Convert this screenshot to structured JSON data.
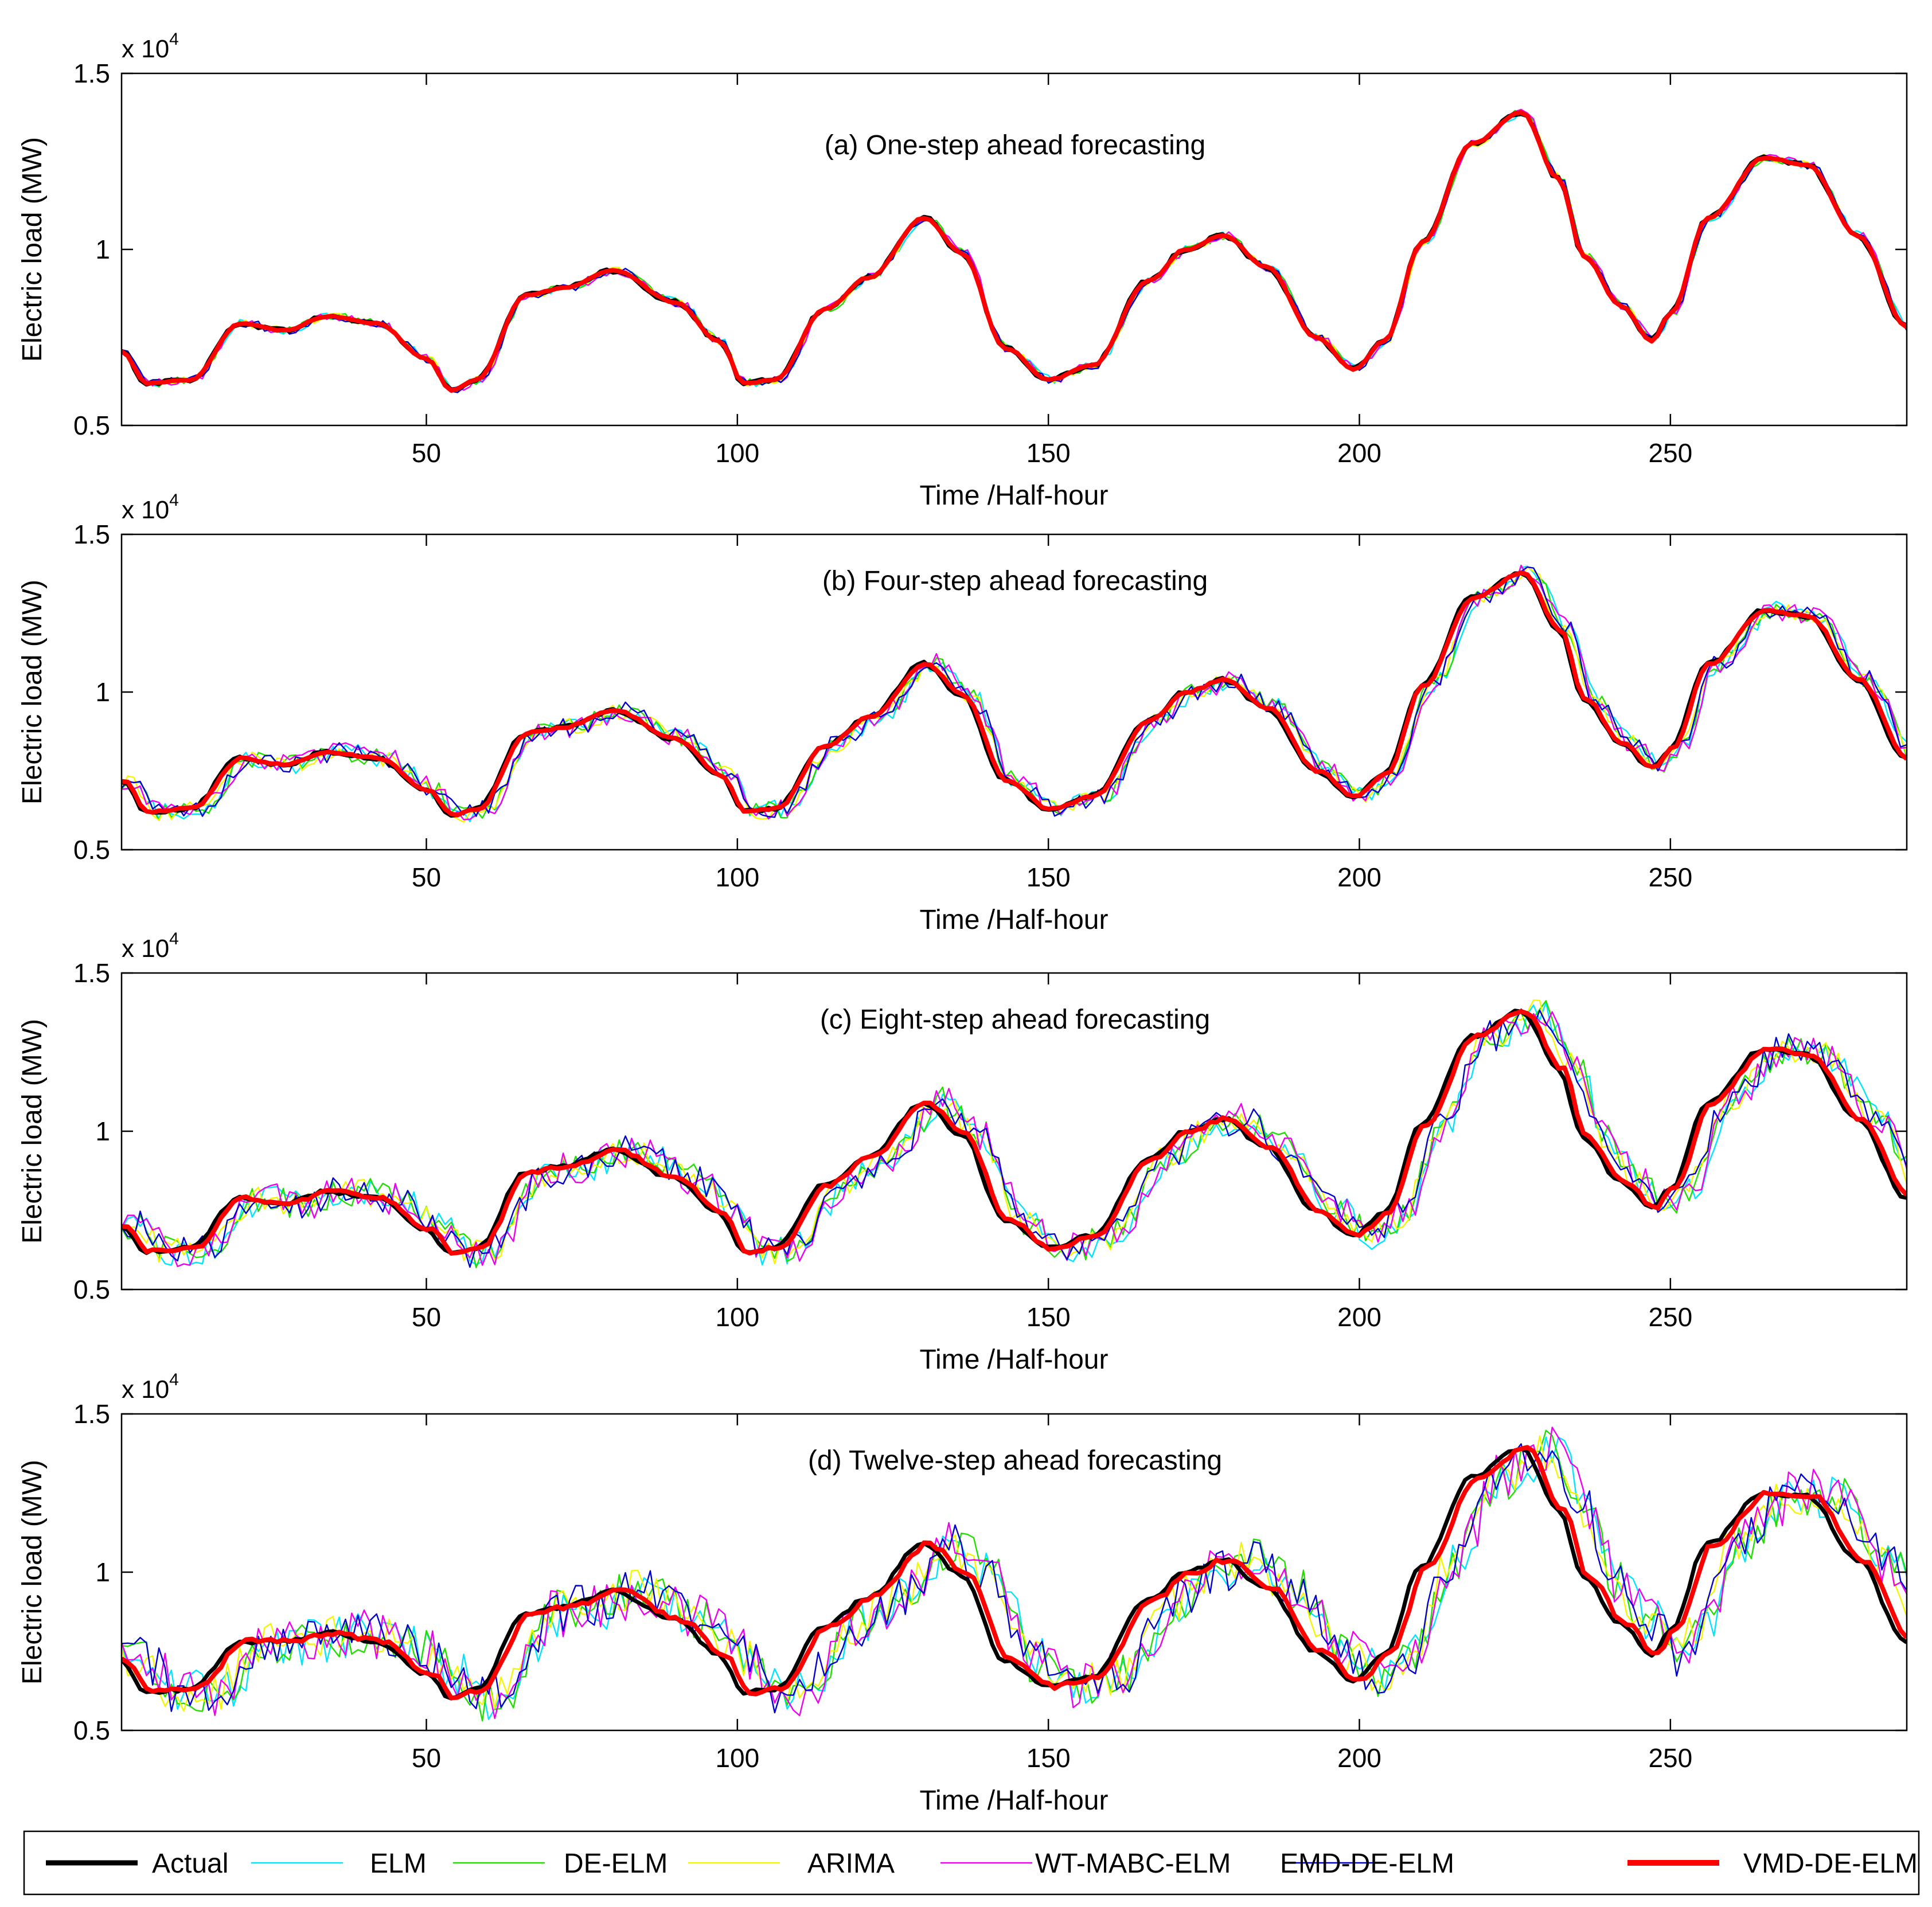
{
  "figure": {
    "x_label": "Time /Half-hour",
    "y_label": "Electric load (MW)",
    "exponent_base": "x 10",
    "exponent_power": "4"
  },
  "legend": [
    {
      "name": "Actual",
      "color": "#000000"
    },
    {
      "name": "ELM",
      "color": "#00e5ff"
    },
    {
      "name": "DE-ELM",
      "color": "#22dd00"
    },
    {
      "name": "ARIMA",
      "color": "#f5f500"
    },
    {
      "name": "WT-MABC-ELM",
      "color": "#ee00ee"
    },
    {
      "name": "EMD-DE-ELM",
      "color": "#0000cc"
    },
    {
      "name": "VMD-DE-ELM",
      "color": "#ff0000"
    }
  ],
  "chart_data": [
    {
      "type": "line",
      "title": "(a) One-step ahead forecasting",
      "xlabel": "Time /Half-hour",
      "ylabel": "Electric load (MW)",
      "xlim": [
        1,
        288
      ],
      "ylim": [
        0.5,
        1.5
      ],
      "y_scale": "x 10^4",
      "xticks": [
        50,
        100,
        150,
        200,
        250
      ],
      "yticks": [
        0.5,
        1,
        1.5
      ],
      "ytick_labels": [
        "0.5",
        "1",
        "1.5"
      ],
      "noise_amplitude": 0.012,
      "series_source": "Actual half-hourly load (x 10^4 MW) with each model's forecast tracking it",
      "actual_keypoints": [
        [
          1,
          0.71
        ],
        [
          5,
          0.62
        ],
        [
          12,
          0.63
        ],
        [
          20,
          0.79
        ],
        [
          27,
          0.77
        ],
        [
          34,
          0.81
        ],
        [
          42,
          0.79
        ],
        [
          50,
          0.69
        ],
        [
          54,
          0.6
        ],
        [
          58,
          0.63
        ],
        [
          66,
          0.87
        ],
        [
          72,
          0.89
        ],
        [
          80,
          0.94
        ],
        [
          90,
          0.85
        ],
        [
          97,
          0.74
        ],
        [
          101,
          0.62
        ],
        [
          106,
          0.63
        ],
        [
          114,
          0.83
        ],
        [
          121,
          0.92
        ],
        [
          130,
          1.09
        ],
        [
          136,
          0.99
        ],
        [
          143,
          0.72
        ],
        [
          150,
          0.63
        ],
        [
          157,
          0.67
        ],
        [
          166,
          0.91
        ],
        [
          172,
          1.0
        ],
        [
          178,
          1.04
        ],
        [
          185,
          0.95
        ],
        [
          193,
          0.75
        ],
        [
          199,
          0.66
        ],
        [
          204,
          0.74
        ],
        [
          210,
          1.02
        ],
        [
          218,
          1.3
        ],
        [
          226,
          1.39
        ],
        [
          232,
          1.2
        ],
        [
          236,
          0.98
        ],
        [
          242,
          0.84
        ],
        [
          247,
          0.74
        ],
        [
          250,
          0.82
        ],
        [
          256,
          1.09
        ],
        [
          265,
          1.26
        ],
        [
          272,
          1.24
        ],
        [
          280,
          1.04
        ],
        [
          288,
          0.78
        ]
      ]
    },
    {
      "type": "line",
      "title": "(b) Four-step ahead forecasting",
      "xlabel": "Time /Half-hour",
      "ylabel": "Electric load (MW)",
      "xlim": [
        1,
        288
      ],
      "ylim": [
        0.5,
        1.5
      ],
      "y_scale": "x 10^4",
      "xticks": [
        50,
        100,
        150,
        200,
        250
      ],
      "yticks": [
        0.5,
        1,
        1.5
      ],
      "ytick_labels": [
        "0.5",
        "1",
        "1.5"
      ],
      "noise_amplitude": 0.03,
      "series_source": "Actual half-hourly load (x 10^4 MW) with each model's forecast tracking it",
      "actual_keypoints": [
        [
          1,
          0.72
        ],
        [
          5,
          0.62
        ],
        [
          12,
          0.63
        ],
        [
          20,
          0.79
        ],
        [
          27,
          0.77
        ],
        [
          34,
          0.81
        ],
        [
          42,
          0.79
        ],
        [
          50,
          0.69
        ],
        [
          54,
          0.61
        ],
        [
          58,
          0.63
        ],
        [
          66,
          0.87
        ],
        [
          72,
          0.89
        ],
        [
          80,
          0.94
        ],
        [
          90,
          0.85
        ],
        [
          97,
          0.74
        ],
        [
          101,
          0.62
        ],
        [
          106,
          0.63
        ],
        [
          114,
          0.83
        ],
        [
          121,
          0.92
        ],
        [
          130,
          1.09
        ],
        [
          136,
          0.99
        ],
        [
          143,
          0.72
        ],
        [
          150,
          0.63
        ],
        [
          157,
          0.67
        ],
        [
          166,
          0.91
        ],
        [
          172,
          1.0
        ],
        [
          178,
          1.04
        ],
        [
          185,
          0.95
        ],
        [
          193,
          0.75
        ],
        [
          199,
          0.67
        ],
        [
          204,
          0.74
        ],
        [
          210,
          1.02
        ],
        [
          218,
          1.3
        ],
        [
          226,
          1.38
        ],
        [
          232,
          1.2
        ],
        [
          236,
          0.98
        ],
        [
          242,
          0.84
        ],
        [
          247,
          0.76
        ],
        [
          250,
          0.82
        ],
        [
          256,
          1.09
        ],
        [
          265,
          1.26
        ],
        [
          272,
          1.24
        ],
        [
          280,
          1.04
        ],
        [
          288,
          0.79
        ]
      ]
    },
    {
      "type": "line",
      "title": "(c) Eight-step ahead forecasting",
      "xlabel": "Time /Half-hour",
      "ylabel": "Electric load (MW)",
      "xlim": [
        1,
        288
      ],
      "ylim": [
        0.5,
        1.5
      ],
      "y_scale": "x 10^4",
      "xticks": [
        50,
        100,
        150,
        200,
        250
      ],
      "yticks": [
        0.5,
        1,
        1.5
      ],
      "ytick_labels": [
        "0.5",
        "1",
        "1.5"
      ],
      "noise_amplitude": 0.05,
      "series_source": "Actual half-hourly load (x 10^4 MW) with each model's forecast tracking it",
      "actual_keypoints": [
        [
          1,
          0.7
        ],
        [
          5,
          0.62
        ],
        [
          12,
          0.63
        ],
        [
          20,
          0.79
        ],
        [
          27,
          0.77
        ],
        [
          34,
          0.81
        ],
        [
          42,
          0.79
        ],
        [
          50,
          0.69
        ],
        [
          54,
          0.61
        ],
        [
          58,
          0.63
        ],
        [
          66,
          0.87
        ],
        [
          72,
          0.89
        ],
        [
          80,
          0.94
        ],
        [
          90,
          0.85
        ],
        [
          97,
          0.74
        ],
        [
          101,
          0.62
        ],
        [
          106,
          0.63
        ],
        [
          114,
          0.83
        ],
        [
          121,
          0.92
        ],
        [
          130,
          1.09
        ],
        [
          136,
          0.99
        ],
        [
          143,
          0.72
        ],
        [
          150,
          0.63
        ],
        [
          157,
          0.67
        ],
        [
          166,
          0.91
        ],
        [
          172,
          1.0
        ],
        [
          178,
          1.04
        ],
        [
          185,
          0.95
        ],
        [
          193,
          0.75
        ],
        [
          199,
          0.67
        ],
        [
          204,
          0.74
        ],
        [
          210,
          1.02
        ],
        [
          218,
          1.3
        ],
        [
          226,
          1.38
        ],
        [
          232,
          1.2
        ],
        [
          236,
          0.98
        ],
        [
          242,
          0.84
        ],
        [
          247,
          0.76
        ],
        [
          250,
          0.82
        ],
        [
          256,
          1.09
        ],
        [
          265,
          1.26
        ],
        [
          272,
          1.24
        ],
        [
          280,
          1.04
        ],
        [
          288,
          0.79
        ]
      ]
    },
    {
      "type": "line",
      "title": "(d) Twelve-step ahead forecasting",
      "xlabel": "Time /Half-hour",
      "ylabel": "Electric load (MW)",
      "xlim": [
        1,
        288
      ],
      "ylim": [
        0.5,
        1.5
      ],
      "y_scale": "x 10^4",
      "xticks": [
        50,
        100,
        150,
        200,
        250
      ],
      "yticks": [
        0.5,
        1,
        1.5
      ],
      "ytick_labels": [
        "0.5",
        "1",
        "1.5"
      ],
      "noise_amplitude": 0.075,
      "series_source": "Actual half-hourly load (x 10^4 MW) with each model's forecast tracking it",
      "actual_keypoints": [
        [
          1,
          0.72
        ],
        [
          5,
          0.62
        ],
        [
          12,
          0.63
        ],
        [
          20,
          0.78
        ],
        [
          27,
          0.78
        ],
        [
          34,
          0.81
        ],
        [
          42,
          0.78
        ],
        [
          50,
          0.68
        ],
        [
          54,
          0.6
        ],
        [
          58,
          0.63
        ],
        [
          66,
          0.87
        ],
        [
          72,
          0.89
        ],
        [
          80,
          0.94
        ],
        [
          90,
          0.85
        ],
        [
          97,
          0.74
        ],
        [
          101,
          0.62
        ],
        [
          106,
          0.63
        ],
        [
          114,
          0.83
        ],
        [
          121,
          0.92
        ],
        [
          130,
          1.09
        ],
        [
          136,
          0.99
        ],
        [
          143,
          0.72
        ],
        [
          150,
          0.64
        ],
        [
          157,
          0.67
        ],
        [
          166,
          0.91
        ],
        [
          172,
          1.0
        ],
        [
          178,
          1.04
        ],
        [
          185,
          0.95
        ],
        [
          193,
          0.75
        ],
        [
          199,
          0.66
        ],
        [
          204,
          0.74
        ],
        [
          210,
          1.02
        ],
        [
          218,
          1.3
        ],
        [
          226,
          1.39
        ],
        [
          232,
          1.2
        ],
        [
          236,
          0.98
        ],
        [
          242,
          0.84
        ],
        [
          247,
          0.74
        ],
        [
          250,
          0.82
        ],
        [
          256,
          1.09
        ],
        [
          265,
          1.25
        ],
        [
          272,
          1.24
        ],
        [
          280,
          1.04
        ],
        [
          288,
          0.78
        ]
      ]
    }
  ]
}
